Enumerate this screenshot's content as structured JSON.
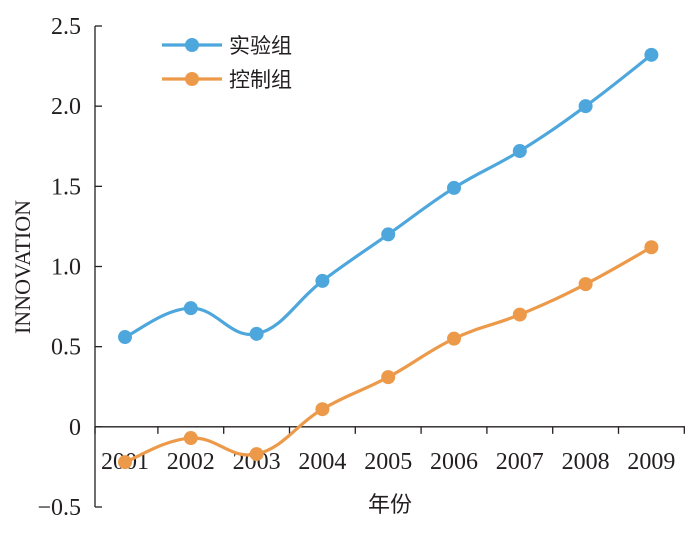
{
  "chart_data": {
    "type": "line",
    "title": "",
    "xlabel": "年份",
    "ylabel": "INNOVATION",
    "categories": [
      "2001",
      "2002",
      "2003",
      "2004",
      "2005",
      "2006",
      "2007",
      "2008",
      "2009"
    ],
    "ylim": [
      -0.5,
      2.5
    ],
    "yticks": [
      "−0.5",
      "0",
      "0.5",
      "1.0",
      "1.5",
      "2.0",
      "2.5"
    ],
    "ytick_values": [
      -0.5,
      0,
      0.5,
      1.0,
      1.5,
      2.0,
      2.5
    ],
    "grid": false,
    "legend_position": "top-left",
    "smooth": true,
    "series": [
      {
        "name": "实验组",
        "color": "#4ea7dc",
        "values": [
          0.56,
          0.74,
          0.58,
          0.91,
          1.2,
          1.49,
          1.72,
          2.0,
          2.32
        ]
      },
      {
        "name": "控制组",
        "color": "#ec9a49",
        "values": [
          -0.22,
          -0.07,
          -0.17,
          0.11,
          0.31,
          0.55,
          0.7,
          0.89,
          1.12
        ]
      }
    ]
  }
}
